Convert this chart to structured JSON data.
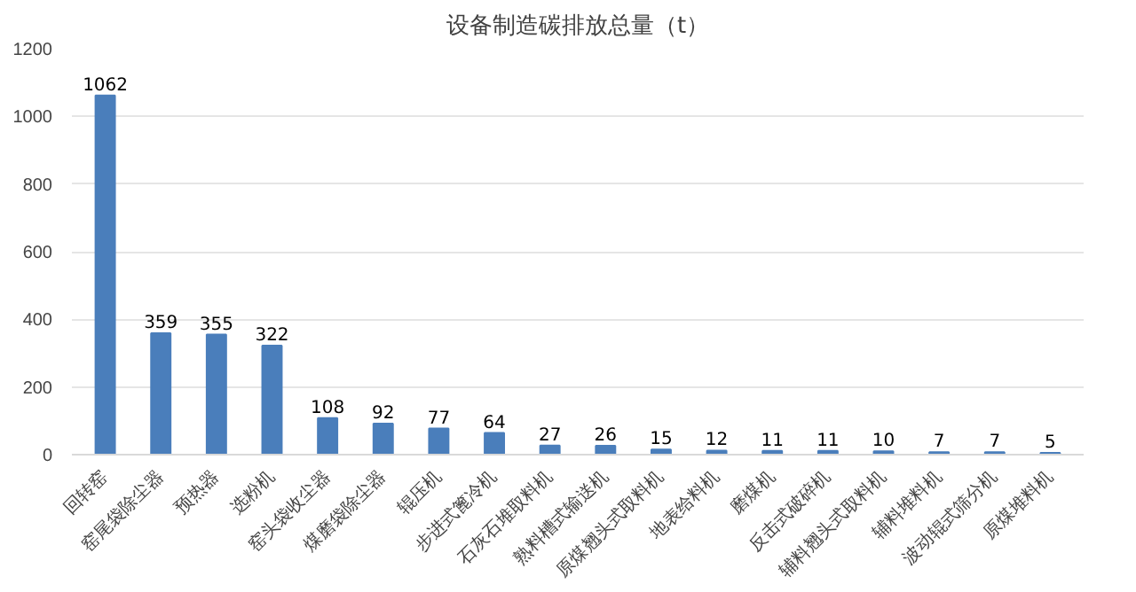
{
  "chart_data": {
    "type": "bar",
    "title": "设备制造碳排放总量（t）",
    "categories": [
      "回转窑",
      "窑尾袋除尘器",
      "预热器",
      "选粉机",
      "窑头袋收尘器",
      "煤磨袋除尘器",
      "辊压机",
      "步进式篦冷机",
      "石灰石堆取料机",
      "熟料槽式输送机",
      "原煤翘头式取料机",
      "地表给料机",
      "磨煤机",
      "反击式破碎机",
      "辅料翘头式取料机",
      "辅料堆料机",
      "波动辊式筛分机",
      "原煤堆料机"
    ],
    "values": [
      1062,
      359,
      355,
      322,
      108,
      92,
      77,
      64,
      27,
      26,
      15,
      12,
      11,
      11,
      10,
      7,
      7,
      5
    ],
    "color": "#4a7ebb",
    "ylim": [
      0,
      1200
    ],
    "yticks": [
      0,
      200,
      400,
      600,
      800,
      1000,
      1200
    ],
    "grid": "y",
    "data_labels": true
  }
}
